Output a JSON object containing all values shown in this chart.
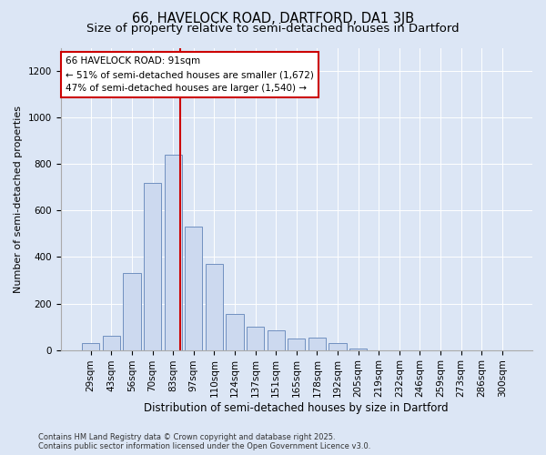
{
  "title1": "66, HAVELOCK ROAD, DARTFORD, DA1 3JB",
  "title2": "Size of property relative to semi-detached houses in Dartford",
  "xlabel": "Distribution of semi-detached houses by size in Dartford",
  "ylabel": "Number of semi-detached properties",
  "footer1": "Contains HM Land Registry data © Crown copyright and database right 2025.",
  "footer2": "Contains public sector information licensed under the Open Government Licence v3.0.",
  "bar_labels": [
    "29sqm",
    "43sqm",
    "56sqm",
    "70sqm",
    "83sqm",
    "97sqm",
    "110sqm",
    "124sqm",
    "137sqm",
    "151sqm",
    "165sqm",
    "178sqm",
    "192sqm",
    "205sqm",
    "219sqm",
    "232sqm",
    "246sqm",
    "259sqm",
    "273sqm",
    "286sqm",
    "300sqm"
  ],
  "bar_values": [
    30,
    60,
    330,
    720,
    840,
    530,
    370,
    155,
    100,
    85,
    50,
    55,
    28,
    5,
    0,
    0,
    0,
    0,
    0,
    0,
    0
  ],
  "bar_color": "#ccd9ef",
  "bar_edge_color": "#7090c0",
  "annotation_line1": "66 HAVELOCK ROAD: 91sqm",
  "annotation_line2": "← 51% of semi-detached houses are smaller (1,672)",
  "annotation_line3": "47% of semi-detached houses are larger (1,540) →",
  "vline_x_index": 4.35,
  "vline_color": "#cc0000",
  "ylim": [
    0,
    1300
  ],
  "yticks": [
    0,
    200,
    400,
    600,
    800,
    1000,
    1200
  ],
  "bg_color": "#dce6f5",
  "plot_bg_color": "#dce6f5",
  "annotation_box_color": "white",
  "annotation_box_edge_color": "#cc0000",
  "annotation_fontsize": 7.5,
  "title1_fontsize": 10.5,
  "title2_fontsize": 9.5,
  "xlabel_fontsize": 8.5,
  "ylabel_fontsize": 8.0,
  "tick_fontsize": 7.5,
  "footer_fontsize": 6.0
}
